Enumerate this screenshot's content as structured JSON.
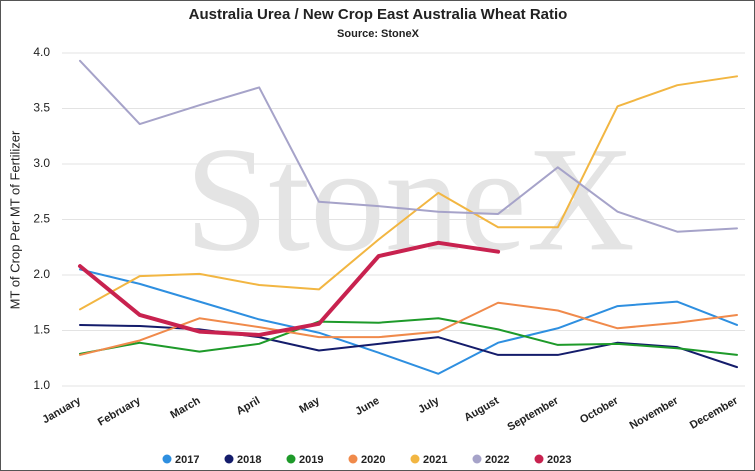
{
  "chart_data": {
    "type": "line",
    "title": "Australia Urea / New Crop East Australia Wheat Ratio",
    "subtitle": "Source: StoneX",
    "watermark": "StoneX",
    "ylabel": "MT of Crop Per MT of Fertilizer",
    "categories": [
      "January",
      "February",
      "March",
      "April",
      "May",
      "June",
      "July",
      "August",
      "September",
      "October",
      "November",
      "December"
    ],
    "ylim": [
      1.0,
      4.0
    ],
    "yticks": [
      {
        "value": 1.0,
        "label": "1.0"
      },
      {
        "value": 1.5,
        "label": "1.5"
      },
      {
        "value": 2.0,
        "label": "2.0"
      },
      {
        "value": 2.5,
        "label": "2.5"
      },
      {
        "value": 3.0,
        "label": "3.0"
      },
      {
        "value": 3.5,
        "label": "3.5"
      },
      {
        "value": 4.0,
        "label": "4.0"
      }
    ],
    "grid": true,
    "legend": "bottom",
    "series": [
      {
        "name": "2017",
        "color": "#2e8fe0",
        "values": [
          2.05,
          1.92,
          1.76,
          1.6,
          1.48,
          1.3,
          1.11,
          1.39,
          1.52,
          1.72,
          1.76,
          1.55
        ]
      },
      {
        "name": "2018",
        "color": "#141c6b",
        "values": [
          1.55,
          1.54,
          1.51,
          1.44,
          1.32,
          1.38,
          1.44,
          1.28,
          1.28,
          1.39,
          1.35,
          1.17
        ]
      },
      {
        "name": "2019",
        "color": "#1e9a2a",
        "values": [
          1.29,
          1.39,
          1.31,
          1.38,
          1.58,
          1.57,
          1.61,
          1.51,
          1.37,
          1.38,
          1.34,
          1.28
        ]
      },
      {
        "name": "2020",
        "color": "#f08a4b",
        "values": [
          1.28,
          1.41,
          1.61,
          1.53,
          1.44,
          1.44,
          1.49,
          1.75,
          1.68,
          1.52,
          1.57,
          1.64
        ]
      },
      {
        "name": "2021",
        "color": "#f2b642",
        "values": [
          1.69,
          1.99,
          2.01,
          1.91,
          1.87,
          2.32,
          2.74,
          2.43,
          2.43,
          3.52,
          3.71,
          3.79
        ]
      },
      {
        "name": "2022",
        "color": "#a6a3c9",
        "values": [
          3.93,
          3.36,
          3.53,
          3.69,
          2.66,
          2.62,
          2.57,
          2.55,
          2.97,
          2.57,
          2.39,
          2.42
        ]
      },
      {
        "name": "2023",
        "color": "#c8224f",
        "width": 4,
        "values": [
          2.08,
          1.64,
          1.49,
          1.46,
          1.56,
          2.17,
          2.29,
          2.21,
          null,
          null,
          null,
          null
        ]
      }
    ]
  }
}
